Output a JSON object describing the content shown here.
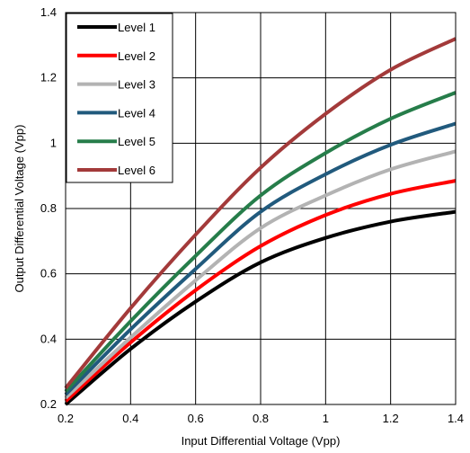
{
  "chart_data": {
    "type": "line",
    "title": "",
    "xlabel": "Input Differential Voltage (Vpp)",
    "ylabel": "Output Differential Voltage (Vpp)",
    "xlim": [
      0.2,
      1.4
    ],
    "ylim": [
      0.2,
      1.4
    ],
    "xticks": [
      "0.2",
      "0.4",
      "0.6",
      "0.8",
      "1",
      "1.2",
      "1.4"
    ],
    "yticks": [
      "0.2",
      "0.4",
      "0.6",
      "0.8",
      "1",
      "1.2",
      "1.4"
    ],
    "grid": true,
    "legend_position": "top-left",
    "series": [
      {
        "name": "Level 1",
        "color": "#000000",
        "x": [
          0.2,
          0.4,
          0.6,
          0.8,
          1.0,
          1.2,
          1.4
        ],
        "y": [
          0.2,
          0.37,
          0.515,
          0.635,
          0.71,
          0.76,
          0.79
        ]
      },
      {
        "name": "Level 2",
        "color": "#ff0000",
        "x": [
          0.2,
          0.4,
          0.6,
          0.8,
          1.0,
          1.2,
          1.4
        ],
        "y": [
          0.21,
          0.39,
          0.55,
          0.685,
          0.78,
          0.845,
          0.885
        ]
      },
      {
        "name": "Level 3",
        "color": "#b3b3b3",
        "x": [
          0.2,
          0.4,
          0.6,
          0.8,
          1.0,
          1.2,
          1.4
        ],
        "y": [
          0.22,
          0.405,
          0.58,
          0.74,
          0.84,
          0.92,
          0.975
        ]
      },
      {
        "name": "Level 4",
        "color": "#215a7d",
        "x": [
          0.2,
          0.4,
          0.6,
          0.8,
          1.0,
          1.2,
          1.4
        ],
        "y": [
          0.23,
          0.43,
          0.615,
          0.79,
          0.905,
          0.995,
          1.06
        ]
      },
      {
        "name": "Level 5",
        "color": "#267d4a",
        "x": [
          0.2,
          0.4,
          0.6,
          0.8,
          1.0,
          1.2,
          1.4
        ],
        "y": [
          0.24,
          0.455,
          0.655,
          0.84,
          0.97,
          1.075,
          1.155
        ]
      },
      {
        "name": "Level 6",
        "color": "#a33a3a",
        "x": [
          0.2,
          0.4,
          0.6,
          0.8,
          1.0,
          1.2,
          1.4
        ],
        "y": [
          0.25,
          0.495,
          0.72,
          0.925,
          1.09,
          1.225,
          1.32
        ]
      }
    ]
  }
}
